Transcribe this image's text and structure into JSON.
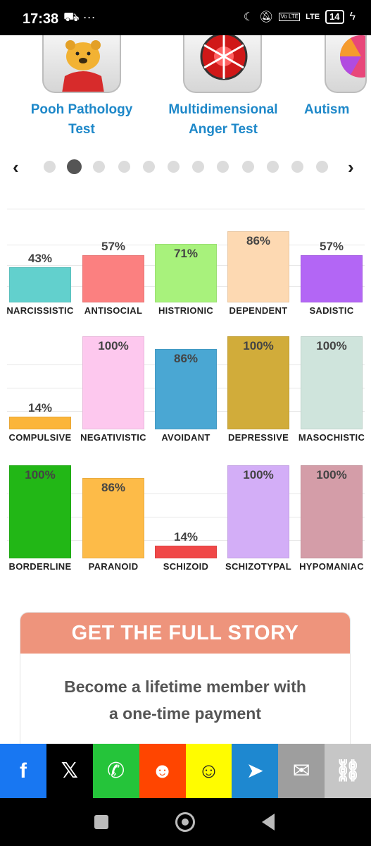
{
  "status": {
    "time": "17:38",
    "left_icons": "⛟ ···",
    "lte": "LTE",
    "volte": "Vo LTE",
    "battery": "14"
  },
  "carousel": {
    "cards": [
      {
        "title_line1": "Pooh Pathology",
        "title_line2": "Test",
        "icon": "winnie-pooh-icon"
      },
      {
        "title_line1": "Multidimensional",
        "title_line2": "Anger Test",
        "icon": "anger-wheel-icon"
      },
      {
        "title_line1": "Autism",
        "title_line2": "",
        "icon": "autism-test-icon"
      }
    ],
    "prev": "‹",
    "next": "›",
    "dot_count": 12,
    "active_dot": 1
  },
  "chart_data": [
    {
      "type": "bar",
      "categories": [
        "NARCISSISTIC",
        "ANTISOCIAL",
        "HISTRIONIC",
        "DEPENDENT",
        "SADISTIC"
      ],
      "values": [
        43,
        57,
        71,
        86,
        57
      ],
      "colors": [
        "#62d0cd",
        "#fb8080",
        "#a8f27c",
        "#fdd9b2",
        "#b366f5"
      ],
      "ylim": [
        0,
        100
      ]
    },
    {
      "type": "bar",
      "categories": [
        "COMPULSIVE",
        "NEGATIVISTIC",
        "AVOIDANT",
        "DEPRESSIVE",
        "MASOCHISTIC"
      ],
      "values": [
        14,
        100,
        86,
        100,
        100
      ],
      "colors": [
        "#fbb53a",
        "#fdc8ee",
        "#4aa7d3",
        "#d1ac3a",
        "#cfe4dc"
      ],
      "ylim": [
        0,
        100
      ]
    },
    {
      "type": "bar",
      "categories": [
        "BORDERLINE",
        "PARANOID",
        "SCHIZOID",
        "SCHIZOTYPAL",
        "HYPOMANIAC"
      ],
      "values": [
        100,
        86,
        14,
        100,
        100
      ],
      "colors": [
        "#22b716",
        "#fdbb48",
        "#f04848",
        "#d3aef7",
        "#d49da8"
      ],
      "ylim": [
        0,
        100
      ]
    }
  ],
  "cta": {
    "heading": "GET THE FULL STORY",
    "body_line1": "Become a lifetime member with",
    "body_line2": "a one-time payment"
  },
  "share": [
    {
      "name": "facebook",
      "glyph": "f",
      "color": "#1877f2"
    },
    {
      "name": "x",
      "glyph": "𝕏",
      "color": "#000000"
    },
    {
      "name": "whatsapp",
      "glyph": "✆",
      "color": "#25c43a"
    },
    {
      "name": "reddit",
      "glyph": "☻",
      "color": "#ff4500"
    },
    {
      "name": "snapchat",
      "glyph": "☺",
      "color": "#fffc00"
    },
    {
      "name": "telegram",
      "glyph": "➤",
      "color": "#1e88d0"
    },
    {
      "name": "email",
      "glyph": "✉",
      "color": "#9e9e9e"
    },
    {
      "name": "copy-link",
      "glyph": "⛓",
      "color": "#c6c6c6"
    }
  ]
}
